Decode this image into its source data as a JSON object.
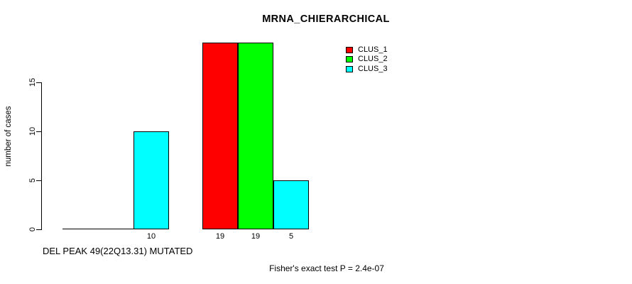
{
  "chart_data": {
    "type": "bar",
    "title": "MRNA_CHIERARCHICAL",
    "ylabel": "number of cases",
    "xlabel": "DEL PEAK 49(22Q13.31) MUTATED",
    "footnote": "Fisher's exact test P = 2.4e-07",
    "ylim": [
      0,
      19
    ],
    "yticks": [
      0,
      5,
      10,
      15
    ],
    "grid": false,
    "legend_position": "top-right",
    "legend": [
      {
        "label": "CLUS_1",
        "color": "#FF0000"
      },
      {
        "label": "CLUS_2",
        "color": "#00FF00"
      },
      {
        "label": "CLUS_3",
        "color": "#00FFFF"
      }
    ],
    "groups": [
      {
        "values": [
          0,
          0,
          10
        ],
        "bar_labels": [
          "",
          "",
          "10"
        ]
      },
      {
        "values": [
          19,
          19,
          5
        ],
        "bar_labels": [
          "19",
          "19",
          "5"
        ]
      }
    ]
  }
}
